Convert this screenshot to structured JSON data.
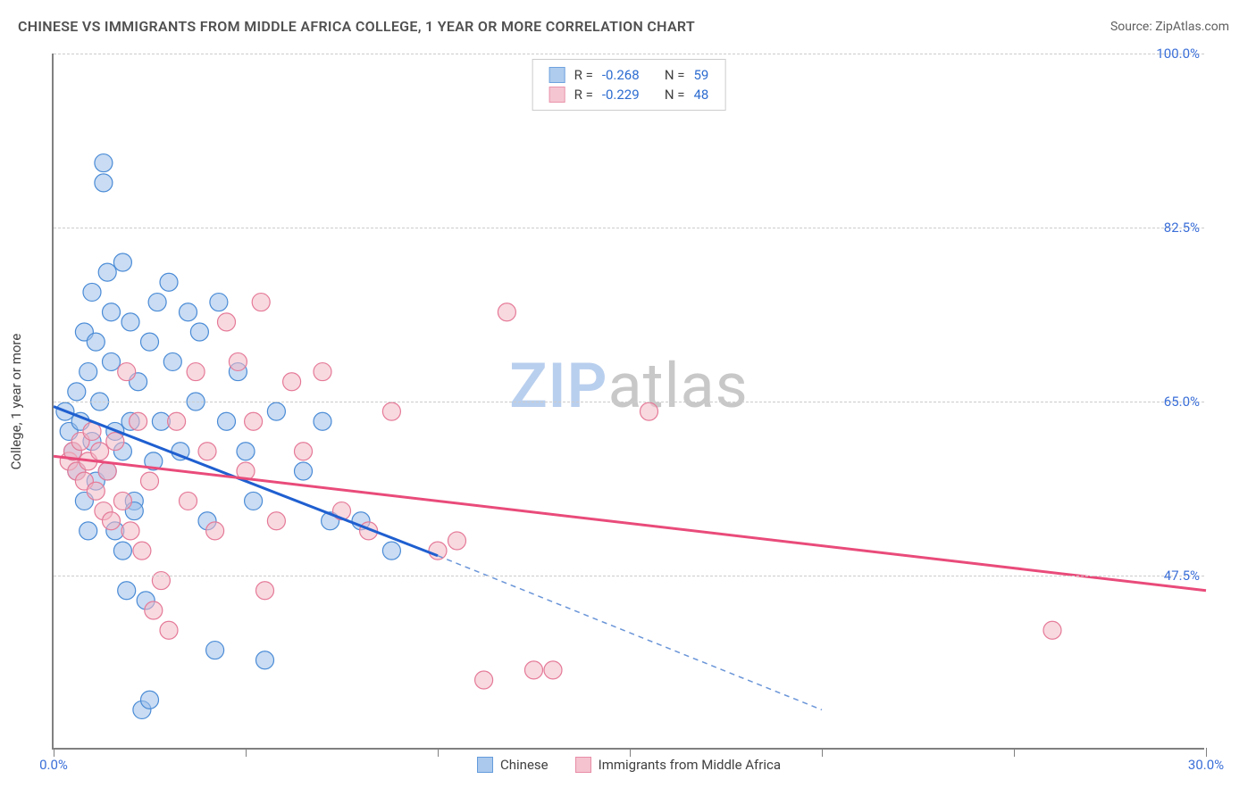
{
  "header": {
    "title": "CHINESE VS IMMIGRANTS FROM MIDDLE AFRICA COLLEGE, 1 YEAR OR MORE CORRELATION CHART",
    "source": "Source: ZipAtlas.com"
  },
  "chart": {
    "type": "scatter",
    "y_axis_label": "College, 1 year or more",
    "xlim": [
      0,
      30
    ],
    "ylim": [
      30,
      100
    ],
    "x_ticks": [
      0,
      5,
      10,
      15,
      20,
      25,
      30
    ],
    "x_tick_labels": {
      "0": "0.0%",
      "30": "30.0%"
    },
    "x_tick_color": "#3b6fd8",
    "y_ticks": [
      47.5,
      65.0,
      82.5,
      100.0
    ],
    "y_tick_labels": [
      "47.5%",
      "65.0%",
      "82.5%",
      "100.0%"
    ],
    "y_tick_color": "#3b6fd8",
    "grid_color": "#cccccc",
    "axis_color": "#808080",
    "background_color": "#ffffff",
    "watermark": {
      "text_zip": "ZIP",
      "text_atlas": "atlas",
      "color_zip": "#b9cfee",
      "color_atlas": "#c8c8c8"
    },
    "series": [
      {
        "name": "Chinese",
        "fill": "#9cc0ea",
        "stroke": "#4a8bd6",
        "fill_opacity": 0.55,
        "marker_radius": 10,
        "R": "-0.268",
        "N": "59",
        "regression": {
          "x1": 0,
          "y1": 64.5,
          "x2": 10,
          "y2": 49.5,
          "x2_ext": 20,
          "y2_ext": 34.0,
          "solid_color": "#1f5fd0",
          "dash_color": "#6a95d8",
          "width": 3
        },
        "points": [
          [
            0.3,
            64
          ],
          [
            0.4,
            62
          ],
          [
            0.5,
            60
          ],
          [
            0.6,
            58
          ],
          [
            0.6,
            66
          ],
          [
            0.7,
            63
          ],
          [
            0.8,
            72
          ],
          [
            0.8,
            55
          ],
          [
            0.9,
            68
          ],
          [
            1.0,
            61
          ],
          [
            1.0,
            76
          ],
          [
            1.1,
            71
          ],
          [
            1.1,
            57
          ],
          [
            1.2,
            65
          ],
          [
            1.3,
            89
          ],
          [
            1.3,
            87
          ],
          [
            1.4,
            78
          ],
          [
            1.5,
            74
          ],
          [
            1.5,
            69
          ],
          [
            1.6,
            62
          ],
          [
            1.6,
            52
          ],
          [
            1.8,
            79
          ],
          [
            1.8,
            60
          ],
          [
            1.9,
            46
          ],
          [
            2.0,
            73
          ],
          [
            2.0,
            63
          ],
          [
            2.1,
            55
          ],
          [
            2.2,
            67
          ],
          [
            2.4,
            45
          ],
          [
            2.5,
            71
          ],
          [
            2.6,
            59
          ],
          [
            2.7,
            75
          ],
          [
            2.8,
            63
          ],
          [
            3.0,
            77
          ],
          [
            3.1,
            69
          ],
          [
            3.3,
            60
          ],
          [
            3.5,
            74
          ],
          [
            3.7,
            65
          ],
          [
            3.8,
            72
          ],
          [
            4.0,
            53
          ],
          [
            4.2,
            40
          ],
          [
            4.3,
            75
          ],
          [
            4.5,
            63
          ],
          [
            4.8,
            68
          ],
          [
            5.0,
            60
          ],
          [
            5.2,
            55
          ],
          [
            5.5,
            39
          ],
          [
            5.8,
            64
          ],
          [
            6.5,
            58
          ],
          [
            7.0,
            63
          ],
          [
            7.2,
            53
          ],
          [
            8.0,
            53
          ],
          [
            8.8,
            50
          ],
          [
            2.3,
            34
          ],
          [
            2.5,
            35
          ],
          [
            1.8,
            50
          ],
          [
            2.1,
            54
          ],
          [
            0.9,
            52
          ],
          [
            1.4,
            58
          ]
        ]
      },
      {
        "name": "Immigrants from Middle Africa",
        "fill": "#f3b9c7",
        "stroke": "#e57a98",
        "fill_opacity": 0.55,
        "marker_radius": 10,
        "R": "-0.229",
        "N": "48",
        "regression": {
          "x1": 0,
          "y1": 59.5,
          "x2": 30,
          "y2": 46.0,
          "solid_color": "#e94b7a",
          "width": 3
        },
        "points": [
          [
            0.4,
            59
          ],
          [
            0.5,
            60
          ],
          [
            0.6,
            58
          ],
          [
            0.7,
            61
          ],
          [
            0.8,
            57
          ],
          [
            0.9,
            59
          ],
          [
            1.0,
            62
          ],
          [
            1.1,
            56
          ],
          [
            1.2,
            60
          ],
          [
            1.3,
            54
          ],
          [
            1.4,
            58
          ],
          [
            1.5,
            53
          ],
          [
            1.6,
            61
          ],
          [
            1.8,
            55
          ],
          [
            1.9,
            68
          ],
          [
            2.0,
            52
          ],
          [
            2.2,
            63
          ],
          [
            2.3,
            50
          ],
          [
            2.5,
            57
          ],
          [
            2.6,
            44
          ],
          [
            2.8,
            47
          ],
          [
            3.0,
            42
          ],
          [
            3.2,
            63
          ],
          [
            3.5,
            55
          ],
          [
            3.7,
            68
          ],
          [
            4.0,
            60
          ],
          [
            4.2,
            52
          ],
          [
            4.5,
            73
          ],
          [
            4.8,
            69
          ],
          [
            5.0,
            58
          ],
          [
            5.2,
            63
          ],
          [
            5.5,
            46
          ],
          [
            5.8,
            53
          ],
          [
            6.2,
            67
          ],
          [
            6.5,
            60
          ],
          [
            7.0,
            68
          ],
          [
            7.5,
            54
          ],
          [
            8.2,
            52
          ],
          [
            8.8,
            64
          ],
          [
            10.0,
            50
          ],
          [
            10.5,
            51
          ],
          [
            11.2,
            37
          ],
          [
            11.8,
            74
          ],
          [
            12.5,
            38
          ],
          [
            13.0,
            38
          ],
          [
            15.5,
            64
          ],
          [
            26.0,
            42
          ],
          [
            5.4,
            75
          ]
        ]
      }
    ],
    "legend_top": {
      "R_label": "R =",
      "N_label": "N =",
      "value_color": "#2d6cd0",
      "text_color": "#404040"
    },
    "legend_bottom": {
      "items": [
        "Chinese",
        "Immigrants from Middle Africa"
      ]
    }
  }
}
